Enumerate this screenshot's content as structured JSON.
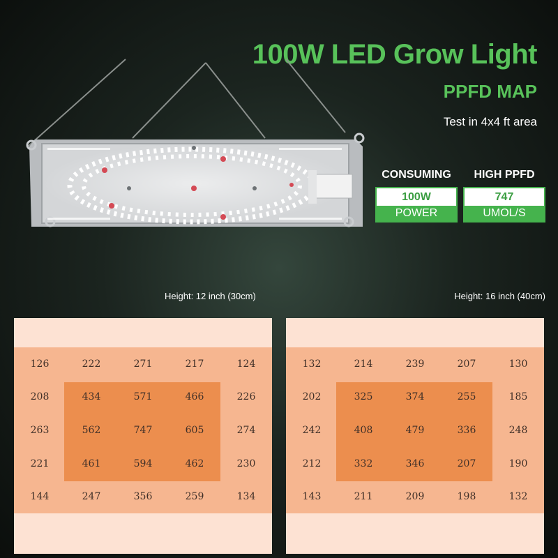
{
  "header": {
    "title": "100W LED Grow Light",
    "subtitle": "PPFD MAP",
    "test_area": "Test in 4x4 ft area"
  },
  "specs": {
    "consuming": {
      "label": "CONSUMING",
      "value": "100W",
      "unit": "POWER"
    },
    "ppfd": {
      "label": "HIGH PPFD",
      "value": "747",
      "unit": "UMOL/S"
    }
  },
  "maps": [
    {
      "height_label": "Height: 12 inch (30cm)",
      "grid": [
        [
          "126",
          "222",
          "271",
          "217",
          "124"
        ],
        [
          "208",
          "434",
          "571",
          "466",
          "226"
        ],
        [
          "263",
          "562",
          "747",
          "605",
          "274"
        ],
        [
          "221",
          "461",
          "594",
          "462",
          "230"
        ],
        [
          "144",
          "247",
          "356",
          "259",
          "134"
        ]
      ]
    },
    {
      "height_label": "Height: 16 inch (40cm)",
      "grid": [
        [
          "132",
          "214",
          "239",
          "207",
          "130"
        ],
        [
          "202",
          "325",
          "374",
          "255",
          "185"
        ],
        [
          "242",
          "408",
          "479",
          "336",
          "248"
        ],
        [
          "212",
          "332",
          "346",
          "207",
          "190"
        ],
        [
          "143",
          "211",
          "209",
          "198",
          "132"
        ]
      ]
    }
  ],
  "colors": {
    "accent_green": "#58c25a",
    "badge_green": "#45b34d",
    "map_edge": "#fde2d3",
    "map_mid": "#f6b690",
    "map_core": "#ec8e4e"
  }
}
